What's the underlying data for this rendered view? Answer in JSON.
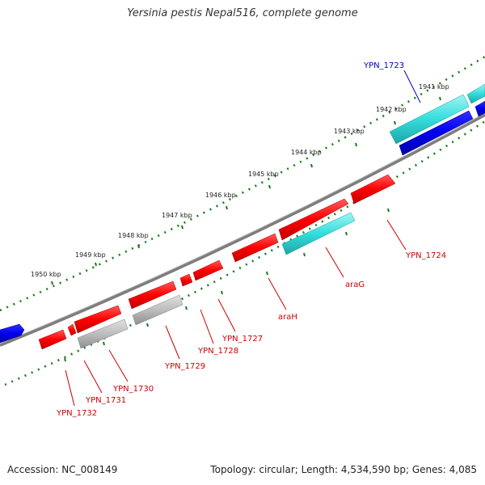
{
  "title": "Yersinia pestis Nepal516, complete genome",
  "footer": {
    "accession": "Accession: NC_008149",
    "topology": "Topology: circular; Length: 4,534,590 bp; Genes: 4,085"
  },
  "colors": {
    "forward_gene": "#ff0000",
    "reverse_gene_dark": "#0000ee",
    "reverse_gene_cyan": "#33cccc",
    "pseudo_gene": "#b8b8b8",
    "backbone": "#808080",
    "tick_dots": "#1a7a1a",
    "label_red": "#cc0000",
    "label_blue": "#0000cc"
  },
  "scale_ticks": [
    "1941 kbp",
    "1942 kbp",
    "1943 kbp",
    "1944 kbp",
    "1945 kbp",
    "1946 kbp",
    "1947 kbp",
    "1948 kbp",
    "1949 kbp",
    "1950 kbp"
  ],
  "gene_labels": [
    "YPN_1723",
    "YPN_1724",
    "araG",
    "araH",
    "YPN_1727",
    "YPN_1728",
    "YPN_1729",
    "YPN_1730",
    "YPN_1731",
    "YPN_1732"
  ]
}
